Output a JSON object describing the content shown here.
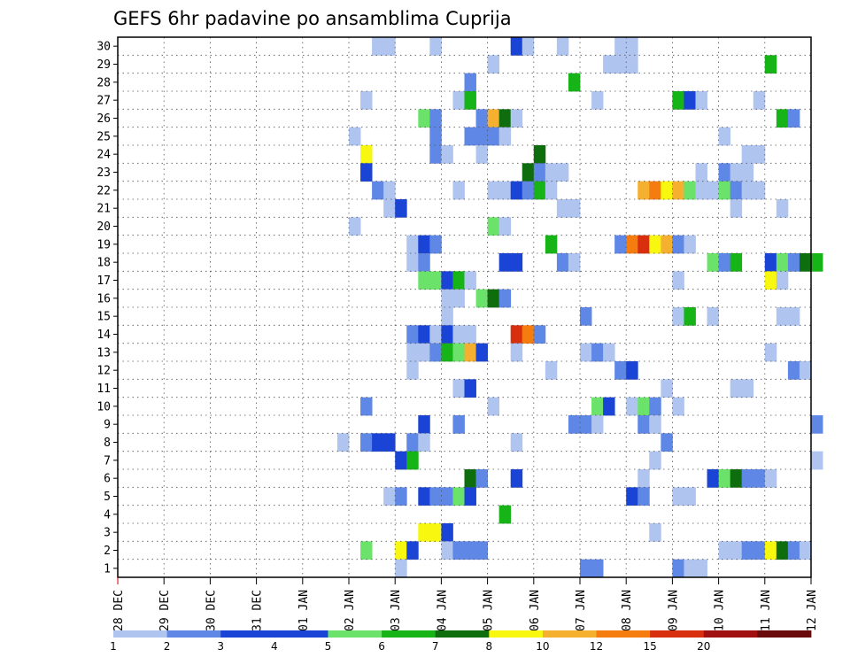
{
  "chart_data": {
    "type": "heatmap",
    "title": "GEFS 6hr padavine po ansamblima Cuprija",
    "xlabel": "",
    "ylabel": "",
    "x_tick_labels": [
      "28 DEC",
      "29 DEC",
      "30 DEC",
      "31 DEC",
      "01 JAN",
      "02 JAN",
      "03 JAN",
      "04 JAN",
      "05 JAN",
      "06 JAN",
      "07 JAN",
      "08 JAN",
      "09 JAN",
      "10 JAN",
      "11 JAN",
      "12 JAN"
    ],
    "x_steps_per_day": 4,
    "xlim_steps": [
      0,
      60
    ],
    "y_tick_labels": [
      1,
      2,
      3,
      4,
      5,
      6,
      7,
      8,
      9,
      10,
      11,
      12,
      13,
      14,
      15,
      16,
      17,
      18,
      19,
      20,
      21,
      22,
      23,
      24,
      25,
      26,
      27,
      28,
      29,
      30
    ],
    "ylim": [
      0,
      30
    ],
    "grid": "dotted",
    "legend_position": "bottom",
    "legend": {
      "labels": [
        "1",
        "2",
        "3",
        "4",
        "5",
        "6",
        "7",
        "8",
        "10",
        "12",
        "15",
        "20"
      ],
      "colors": [
        "#b0c4f0",
        "#5f87e6",
        "#1a44d6",
        "#1a44d6",
        "#6be36b",
        "#16b416",
        "#0e6e0e",
        "#f7f70f",
        "#f5b030",
        "#f57d10",
        "#d8300f",
        "#a01010",
        "#6a0a0a"
      ]
    },
    "cells": [
      {
        "m": 30,
        "s": 22,
        "v": 1
      },
      {
        "m": 30,
        "s": 23,
        "v": 1
      },
      {
        "m": 30,
        "s": 27,
        "v": 1
      },
      {
        "m": 30,
        "s": 34,
        "v": 3
      },
      {
        "m": 30,
        "s": 35,
        "v": 1
      },
      {
        "m": 30,
        "s": 38,
        "v": 1
      },
      {
        "m": 30,
        "s": 43,
        "v": 1
      },
      {
        "m": 30,
        "s": 44,
        "v": 1
      },
      {
        "m": 29,
        "s": 32,
        "v": 1
      },
      {
        "m": 29,
        "s": 42,
        "v": 1
      },
      {
        "m": 29,
        "s": 43,
        "v": 1
      },
      {
        "m": 29,
        "s": 44,
        "v": 1
      },
      {
        "m": 29,
        "s": 56,
        "v": 6
      },
      {
        "m": 28,
        "s": 30,
        "v": 2
      },
      {
        "m": 28,
        "s": 39,
        "v": 6
      },
      {
        "m": 27,
        "s": 21,
        "v": 1
      },
      {
        "m": 27,
        "s": 29,
        "v": 1
      },
      {
        "m": 27,
        "s": 30,
        "v": 6
      },
      {
        "m": 27,
        "s": 41,
        "v": 1
      },
      {
        "m": 27,
        "s": 48,
        "v": 6
      },
      {
        "m": 27,
        "s": 49,
        "v": 3
      },
      {
        "m": 27,
        "s": 50,
        "v": 1
      },
      {
        "m": 27,
        "s": 55,
        "v": 1
      },
      {
        "m": 26,
        "s": 26,
        "v": 5
      },
      {
        "m": 26,
        "s": 27,
        "v": 2
      },
      {
        "m": 26,
        "s": 31,
        "v": 2
      },
      {
        "m": 26,
        "s": 32,
        "v": 10
      },
      {
        "m": 26,
        "s": 33,
        "v": 7
      },
      {
        "m": 26,
        "s": 34,
        "v": 1
      },
      {
        "m": 26,
        "s": 57,
        "v": 6
      },
      {
        "m": 26,
        "s": 58,
        "v": 2
      },
      {
        "m": 25,
        "s": 20,
        "v": 1
      },
      {
        "m": 25,
        "s": 27,
        "v": 2
      },
      {
        "m": 25,
        "s": 30,
        "v": 2
      },
      {
        "m": 25,
        "s": 31,
        "v": 2
      },
      {
        "m": 25,
        "s": 32,
        "v": 2
      },
      {
        "m": 25,
        "s": 33,
        "v": 1
      },
      {
        "m": 25,
        "s": 52,
        "v": 1
      },
      {
        "m": 24,
        "s": 21,
        "v": 8
      },
      {
        "m": 24,
        "s": 27,
        "v": 2
      },
      {
        "m": 24,
        "s": 28,
        "v": 1
      },
      {
        "m": 24,
        "s": 31,
        "v": 1
      },
      {
        "m": 24,
        "s": 36,
        "v": 7
      },
      {
        "m": 24,
        "s": 54,
        "v": 1
      },
      {
        "m": 24,
        "s": 55,
        "v": 1
      },
      {
        "m": 23,
        "s": 21,
        "v": 3
      },
      {
        "m": 23,
        "s": 35,
        "v": 7
      },
      {
        "m": 23,
        "s": 36,
        "v": 2
      },
      {
        "m": 23,
        "s": 37,
        "v": 1
      },
      {
        "m": 23,
        "s": 38,
        "v": 1
      },
      {
        "m": 23,
        "s": 50,
        "v": 1
      },
      {
        "m": 23,
        "s": 52,
        "v": 2
      },
      {
        "m": 23,
        "s": 53,
        "v": 1
      },
      {
        "m": 23,
        "s": 54,
        "v": 1
      },
      {
        "m": 22,
        "s": 22,
        "v": 2
      },
      {
        "m": 22,
        "s": 23,
        "v": 1
      },
      {
        "m": 22,
        "s": 29,
        "v": 1
      },
      {
        "m": 22,
        "s": 32,
        "v": 1
      },
      {
        "m": 22,
        "s": 33,
        "v": 1
      },
      {
        "m": 22,
        "s": 34,
        "v": 3
      },
      {
        "m": 22,
        "s": 35,
        "v": 2
      },
      {
        "m": 22,
        "s": 36,
        "v": 6
      },
      {
        "m": 22,
        "s": 37,
        "v": 1
      },
      {
        "m": 22,
        "s": 45,
        "v": 10
      },
      {
        "m": 22,
        "s": 46,
        "v": 12
      },
      {
        "m": 22,
        "s": 47,
        "v": 8
      },
      {
        "m": 22,
        "s": 48,
        "v": 10
      },
      {
        "m": 22,
        "s": 49,
        "v": 5
      },
      {
        "m": 22,
        "s": 50,
        "v": 1
      },
      {
        "m": 22,
        "s": 51,
        "v": 1
      },
      {
        "m": 22,
        "s": 52,
        "v": 5
      },
      {
        "m": 22,
        "s": 53,
        "v": 2
      },
      {
        "m": 22,
        "s": 54,
        "v": 1
      },
      {
        "m": 22,
        "s": 55,
        "v": 1
      },
      {
        "m": 21,
        "s": 23,
        "v": 1
      },
      {
        "m": 21,
        "s": 24,
        "v": 3
      },
      {
        "m": 21,
        "s": 38,
        "v": 1
      },
      {
        "m": 21,
        "s": 39,
        "v": 1
      },
      {
        "m": 21,
        "s": 53,
        "v": 1
      },
      {
        "m": 21,
        "s": 57,
        "v": 1
      },
      {
        "m": 20,
        "s": 20,
        "v": 1
      },
      {
        "m": 20,
        "s": 32,
        "v": 5
      },
      {
        "m": 20,
        "s": 33,
        "v": 1
      },
      {
        "m": 19,
        "s": 25,
        "v": 1
      },
      {
        "m": 19,
        "s": 26,
        "v": 3
      },
      {
        "m": 19,
        "s": 27,
        "v": 2
      },
      {
        "m": 19,
        "s": 37,
        "v": 6
      },
      {
        "m": 19,
        "s": 43,
        "v": 2
      },
      {
        "m": 19,
        "s": 44,
        "v": 12
      },
      {
        "m": 19,
        "s": 45,
        "v": 15
      },
      {
        "m": 19,
        "s": 46,
        "v": 8
      },
      {
        "m": 19,
        "s": 47,
        "v": 10
      },
      {
        "m": 19,
        "s": 48,
        "v": 2
      },
      {
        "m": 19,
        "s": 49,
        "v": 1
      },
      {
        "m": 18,
        "s": 25,
        "v": 1
      },
      {
        "m": 18,
        "s": 26,
        "v": 2
      },
      {
        "m": 18,
        "s": 33,
        "v": 3
      },
      {
        "m": 18,
        "s": 34,
        "v": 3
      },
      {
        "m": 18,
        "s": 38,
        "v": 2
      },
      {
        "m": 18,
        "s": 39,
        "v": 1
      },
      {
        "m": 18,
        "s": 51,
        "v": 5
      },
      {
        "m": 18,
        "s": 52,
        "v": 2
      },
      {
        "m": 18,
        "s": 53,
        "v": 6
      },
      {
        "m": 18,
        "s": 56,
        "v": 3
      },
      {
        "m": 18,
        "s": 57,
        "v": 5
      },
      {
        "m": 18,
        "s": 58,
        "v": 2
      },
      {
        "m": 18,
        "s": 59,
        "v": 7
      },
      {
        "m": 18,
        "s": 60,
        "v": 6
      },
      {
        "m": 17,
        "s": 26,
        "v": 5
      },
      {
        "m": 17,
        "s": 27,
        "v": 5
      },
      {
        "m": 17,
        "s": 28,
        "v": 3
      },
      {
        "m": 17,
        "s": 29,
        "v": 6
      },
      {
        "m": 17,
        "s": 30,
        "v": 1
      },
      {
        "m": 17,
        "s": 48,
        "v": 1
      },
      {
        "m": 17,
        "s": 56,
        "v": 8
      },
      {
        "m": 17,
        "s": 57,
        "v": 1
      },
      {
        "m": 16,
        "s": 28,
        "v": 1
      },
      {
        "m": 16,
        "s": 29,
        "v": 1
      },
      {
        "m": 16,
        "s": 31,
        "v": 5
      },
      {
        "m": 16,
        "s": 32,
        "v": 7
      },
      {
        "m": 16,
        "s": 33,
        "v": 2
      },
      {
        "m": 15,
        "s": 28,
        "v": 1
      },
      {
        "m": 15,
        "s": 40,
        "v": 2
      },
      {
        "m": 15,
        "s": 48,
        "v": 1
      },
      {
        "m": 15,
        "s": 49,
        "v": 6
      },
      {
        "m": 15,
        "s": 51,
        "v": 1
      },
      {
        "m": 15,
        "s": 57,
        "v": 1
      },
      {
        "m": 15,
        "s": 58,
        "v": 1
      },
      {
        "m": 14,
        "s": 25,
        "v": 2
      },
      {
        "m": 14,
        "s": 26,
        "v": 3
      },
      {
        "m": 14,
        "s": 27,
        "v": 1
      },
      {
        "m": 14,
        "s": 28,
        "v": 3
      },
      {
        "m": 14,
        "s": 29,
        "v": 1
      },
      {
        "m": 14,
        "s": 30,
        "v": 1
      },
      {
        "m": 14,
        "s": 34,
        "v": 15
      },
      {
        "m": 14,
        "s": 35,
        "v": 12
      },
      {
        "m": 14,
        "s": 36,
        "v": 2
      },
      {
        "m": 13,
        "s": 25,
        "v": 1
      },
      {
        "m": 13,
        "s": 26,
        "v": 1
      },
      {
        "m": 13,
        "s": 27,
        "v": 2
      },
      {
        "m": 13,
        "s": 28,
        "v": 6
      },
      {
        "m": 13,
        "s": 29,
        "v": 5
      },
      {
        "m": 13,
        "s": 30,
        "v": 10
      },
      {
        "m": 13,
        "s": 31,
        "v": 3
      },
      {
        "m": 13,
        "s": 34,
        "v": 1
      },
      {
        "m": 13,
        "s": 40,
        "v": 1
      },
      {
        "m": 13,
        "s": 41,
        "v": 2
      },
      {
        "m": 13,
        "s": 42,
        "v": 1
      },
      {
        "m": 13,
        "s": 56,
        "v": 1
      },
      {
        "m": 12,
        "s": 25,
        "v": 1
      },
      {
        "m": 12,
        "s": 37,
        "v": 1
      },
      {
        "m": 12,
        "s": 43,
        "v": 2
      },
      {
        "m": 12,
        "s": 44,
        "v": 3
      },
      {
        "m": 12,
        "s": 58,
        "v": 2
      },
      {
        "m": 12,
        "s": 59,
        "v": 1
      },
      {
        "m": 11,
        "s": 29,
        "v": 1
      },
      {
        "m": 11,
        "s": 30,
        "v": 3
      },
      {
        "m": 11,
        "s": 47,
        "v": 1
      },
      {
        "m": 11,
        "s": 53,
        "v": 1
      },
      {
        "m": 11,
        "s": 54,
        "v": 1
      },
      {
        "m": 10,
        "s": 21,
        "v": 2
      },
      {
        "m": 10,
        "s": 32,
        "v": 1
      },
      {
        "m": 10,
        "s": 41,
        "v": 5
      },
      {
        "m": 10,
        "s": 42,
        "v": 3
      },
      {
        "m": 10,
        "s": 44,
        "v": 1
      },
      {
        "m": 10,
        "s": 45,
        "v": 5
      },
      {
        "m": 10,
        "s": 46,
        "v": 2
      },
      {
        "m": 10,
        "s": 48,
        "v": 1
      },
      {
        "m": 9,
        "s": 26,
        "v": 3
      },
      {
        "m": 9,
        "s": 29,
        "v": 2
      },
      {
        "m": 9,
        "s": 39,
        "v": 2
      },
      {
        "m": 9,
        "s": 40,
        "v": 2
      },
      {
        "m": 9,
        "s": 41,
        "v": 1
      },
      {
        "m": 9,
        "s": 45,
        "v": 2
      },
      {
        "m": 9,
        "s": 46,
        "v": 1
      },
      {
        "m": 9,
        "s": 60,
        "v": 2
      },
      {
        "m": 8,
        "s": 19,
        "v": 1
      },
      {
        "m": 8,
        "s": 21,
        "v": 2
      },
      {
        "m": 8,
        "s": 22,
        "v": 3
      },
      {
        "m": 8,
        "s": 23,
        "v": 3
      },
      {
        "m": 8,
        "s": 25,
        "v": 2
      },
      {
        "m": 8,
        "s": 26,
        "v": 1
      },
      {
        "m": 8,
        "s": 34,
        "v": 1
      },
      {
        "m": 8,
        "s": 47,
        "v": 2
      },
      {
        "m": 7,
        "s": 24,
        "v": 3
      },
      {
        "m": 7,
        "s": 25,
        "v": 6
      },
      {
        "m": 7,
        "s": 46,
        "v": 1
      },
      {
        "m": 7,
        "s": 60,
        "v": 1
      },
      {
        "m": 6,
        "s": 30,
        "v": 7
      },
      {
        "m": 6,
        "s": 31,
        "v": 2
      },
      {
        "m": 6,
        "s": 34,
        "v": 3
      },
      {
        "m": 6,
        "s": 45,
        "v": 1
      },
      {
        "m": 6,
        "s": 51,
        "v": 3
      },
      {
        "m": 6,
        "s": 52,
        "v": 5
      },
      {
        "m": 6,
        "s": 53,
        "v": 7
      },
      {
        "m": 6,
        "s": 54,
        "v": 2
      },
      {
        "m": 6,
        "s": 55,
        "v": 2
      },
      {
        "m": 6,
        "s": 56,
        "v": 1
      },
      {
        "m": 5,
        "s": 23,
        "v": 1
      },
      {
        "m": 5,
        "s": 24,
        "v": 2
      },
      {
        "m": 5,
        "s": 26,
        "v": 3
      },
      {
        "m": 5,
        "s": 27,
        "v": 2
      },
      {
        "m": 5,
        "s": 28,
        "v": 2
      },
      {
        "m": 5,
        "s": 29,
        "v": 5
      },
      {
        "m": 5,
        "s": 30,
        "v": 3
      },
      {
        "m": 5,
        "s": 44,
        "v": 3
      },
      {
        "m": 5,
        "s": 45,
        "v": 2
      },
      {
        "m": 5,
        "s": 48,
        "v": 1
      },
      {
        "m": 5,
        "s": 49,
        "v": 1
      },
      {
        "m": 4,
        "s": 33,
        "v": 6
      },
      {
        "m": 3,
        "s": 26,
        "v": 8
      },
      {
        "m": 3,
        "s": 27,
        "v": 8
      },
      {
        "m": 3,
        "s": 28,
        "v": 3
      },
      {
        "m": 3,
        "s": 46,
        "v": 1
      },
      {
        "m": 2,
        "s": 21,
        "v": 5
      },
      {
        "m": 2,
        "s": 24,
        "v": 8
      },
      {
        "m": 2,
        "s": 25,
        "v": 3
      },
      {
        "m": 2,
        "s": 28,
        "v": 1
      },
      {
        "m": 2,
        "s": 29,
        "v": 2
      },
      {
        "m": 2,
        "s": 30,
        "v": 2
      },
      {
        "m": 2,
        "s": 31,
        "v": 2
      },
      {
        "m": 2,
        "s": 52,
        "v": 1
      },
      {
        "m": 2,
        "s": 53,
        "v": 1
      },
      {
        "m": 2,
        "s": 54,
        "v": 2
      },
      {
        "m": 2,
        "s": 55,
        "v": 2
      },
      {
        "m": 2,
        "s": 56,
        "v": 8
      },
      {
        "m": 2,
        "s": 57,
        "v": 7
      },
      {
        "m": 2,
        "s": 58,
        "v": 2
      },
      {
        "m": 2,
        "s": 59,
        "v": 1
      },
      {
        "m": 1,
        "s": 24,
        "v": 1
      },
      {
        "m": 1,
        "s": 40,
        "v": 2
      },
      {
        "m": 1,
        "s": 41,
        "v": 2
      },
      {
        "m": 1,
        "s": 48,
        "v": 2
      },
      {
        "m": 1,
        "s": 49,
        "v": 1
      },
      {
        "m": 1,
        "s": 50,
        "v": 1
      }
    ]
  }
}
